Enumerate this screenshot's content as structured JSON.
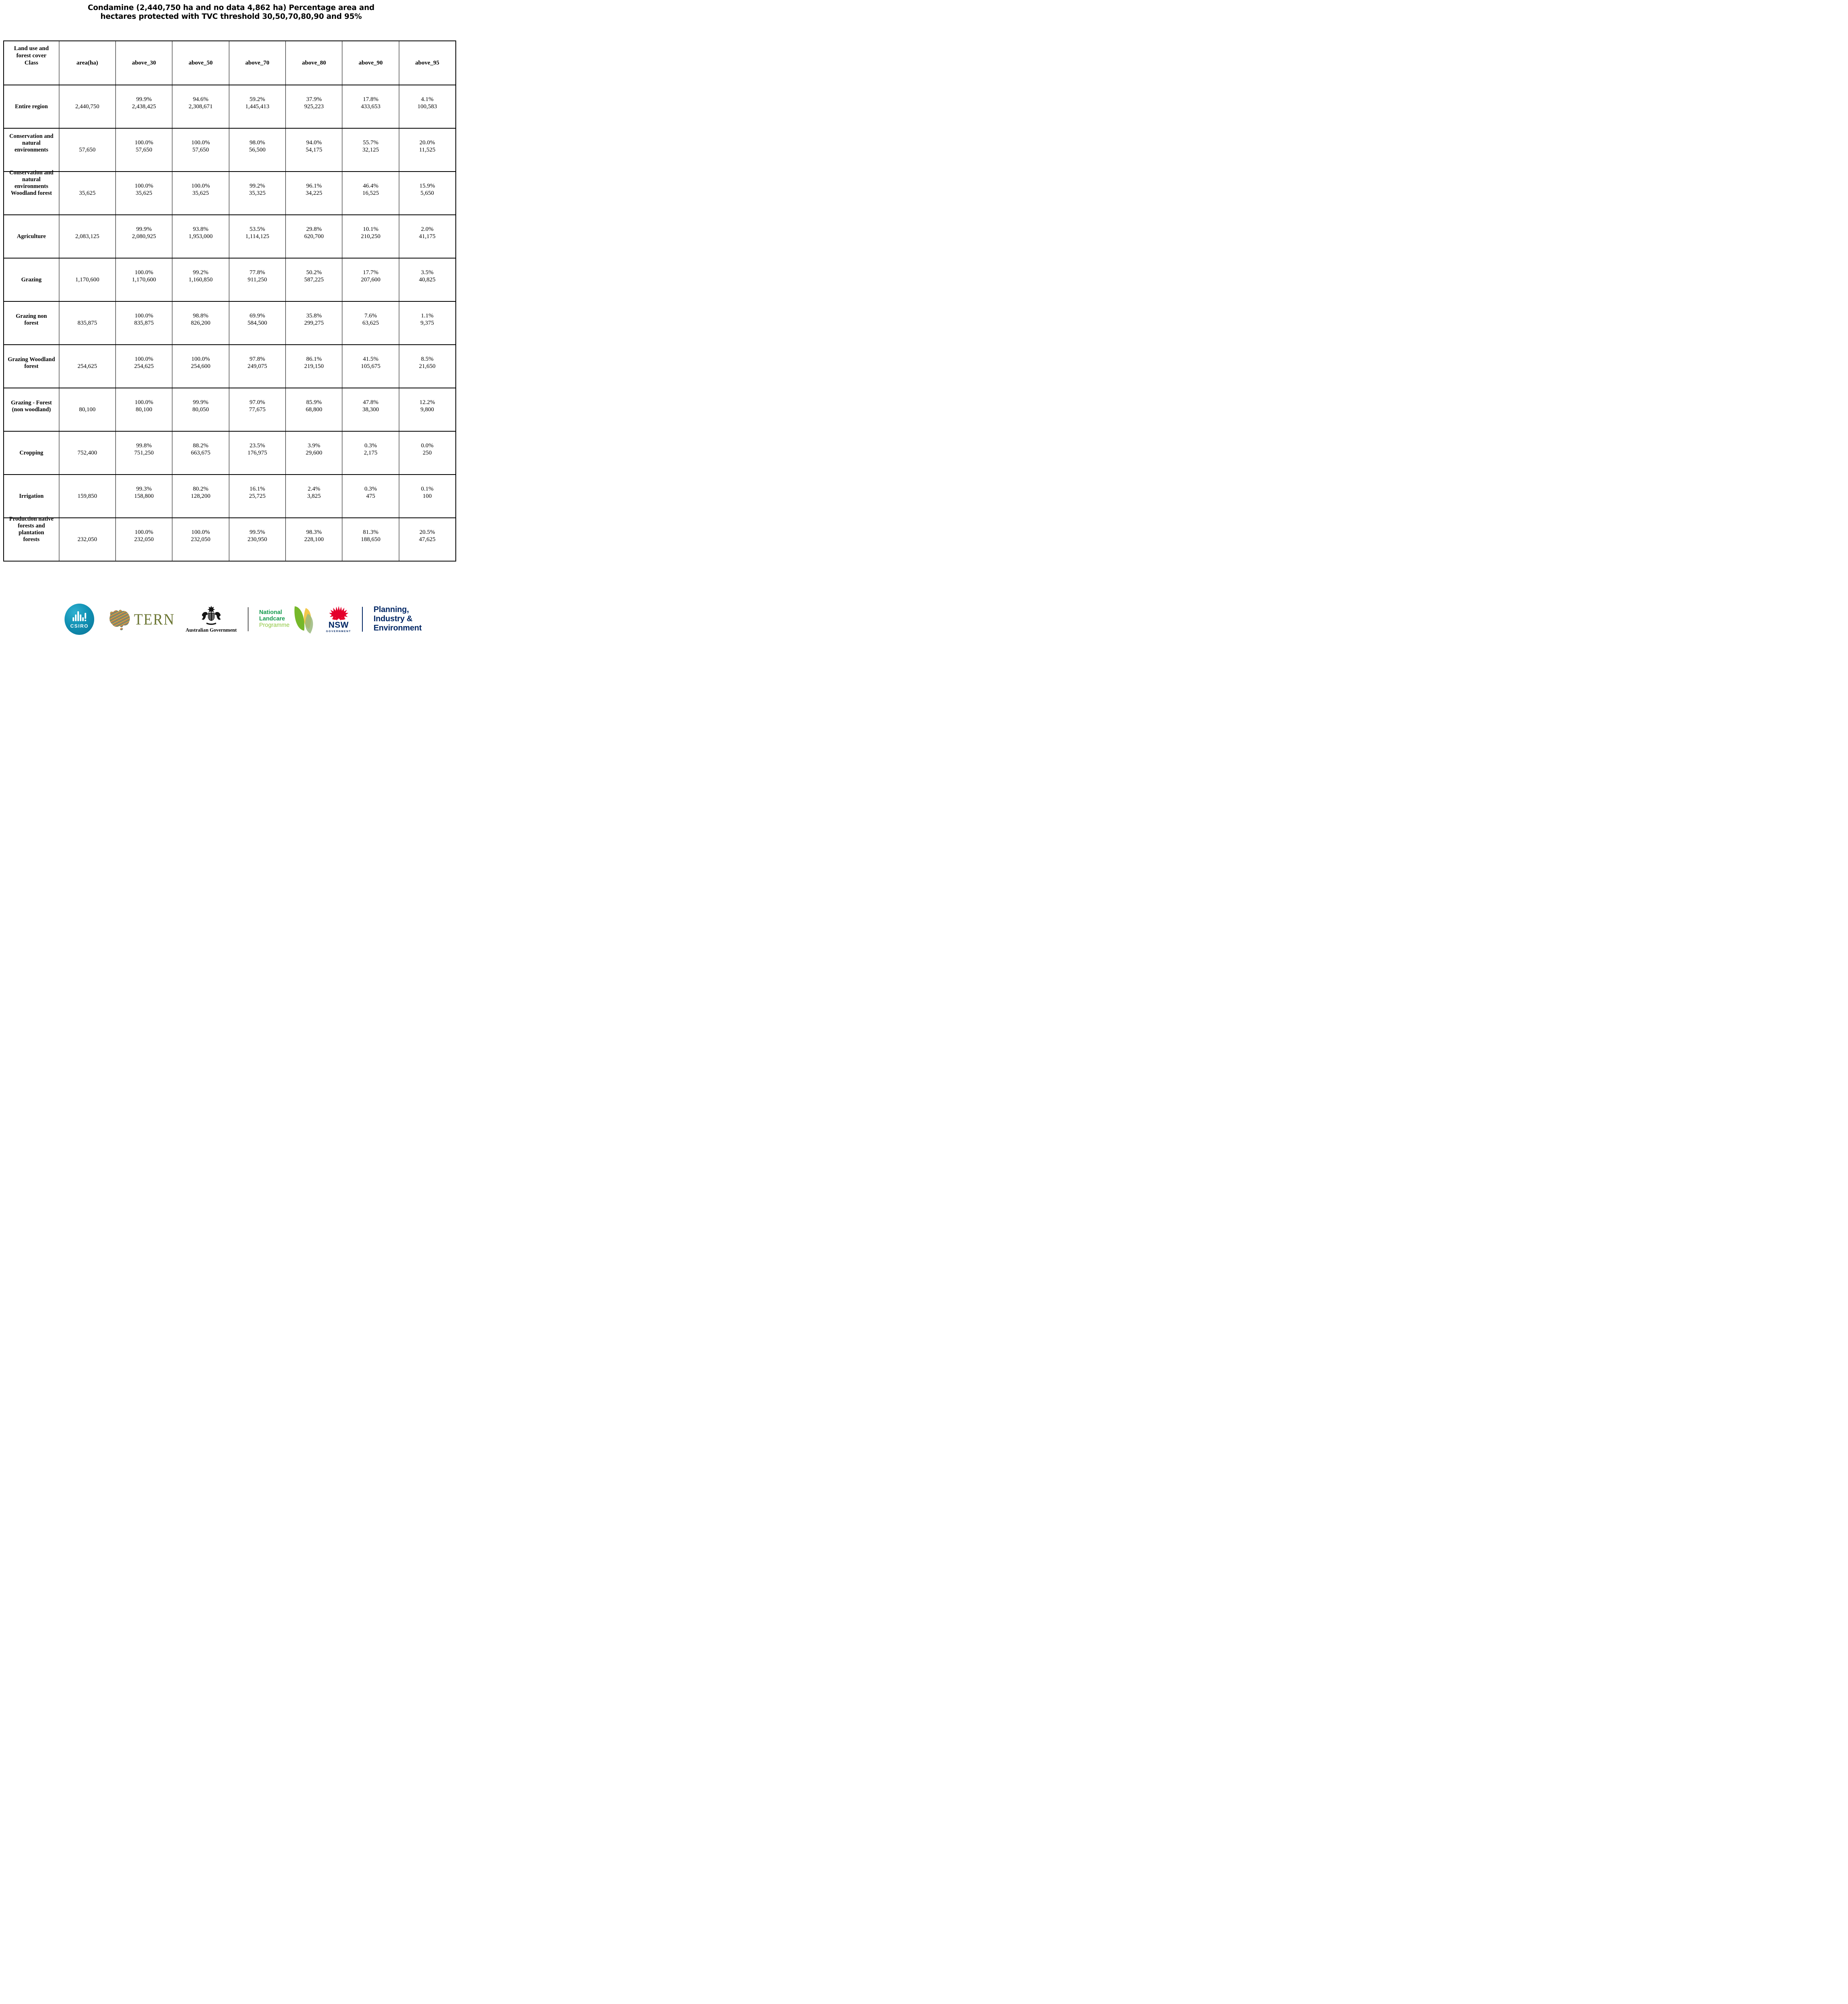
{
  "title": {
    "line1": "Condamine (2,440,750 ha and no data 4,862 ha) Percentage area and",
    "line2": "hectares protected with TVC threshold 30,50,70,80,90 and 95%"
  },
  "table": {
    "header": [
      {
        "lines": [
          "Land use and",
          "forest cover",
          "Class"
        ]
      },
      {
        "lines": [
          "area(ha)"
        ]
      },
      {
        "lines": [
          "above_30"
        ]
      },
      {
        "lines": [
          "above_50"
        ]
      },
      {
        "lines": [
          "above_70"
        ]
      },
      {
        "lines": [
          "above_80"
        ]
      },
      {
        "lines": [
          "above_90"
        ]
      },
      {
        "lines": [
          "above_95"
        ]
      }
    ],
    "rows": [
      {
        "class_lines": [
          "Entire region"
        ],
        "area": "2,440,750",
        "cells": [
          {
            "pct": "99.9%",
            "ha": "2,438,425"
          },
          {
            "pct": "94.6%",
            "ha": "2,308,671"
          },
          {
            "pct": "59.2%",
            "ha": "1,445,413"
          },
          {
            "pct": "37.9%",
            "ha": "925,223"
          },
          {
            "pct": "17.8%",
            "ha": "433,653"
          },
          {
            "pct": "4.1%",
            "ha": "100,583"
          }
        ]
      },
      {
        "class_lines": [
          "Conservation and",
          "natural",
          "environments"
        ],
        "area": "57,650",
        "cells": [
          {
            "pct": "100.0%",
            "ha": "57,650"
          },
          {
            "pct": "100.0%",
            "ha": "57,650"
          },
          {
            "pct": "98.0%",
            "ha": "56,500"
          },
          {
            "pct": "94.0%",
            "ha": "54,175"
          },
          {
            "pct": "55.7%",
            "ha": "32,125"
          },
          {
            "pct": "20.0%",
            "ha": "11,525"
          }
        ]
      },
      {
        "class_lines": [
          "Conservation and",
          "natural",
          "environments",
          "Woodland forest"
        ],
        "area": "35,625",
        "cells": [
          {
            "pct": "100.0%",
            "ha": "35,625"
          },
          {
            "pct": "100.0%",
            "ha": "35,625"
          },
          {
            "pct": "99.2%",
            "ha": "35,325"
          },
          {
            "pct": "96.1%",
            "ha": "34,225"
          },
          {
            "pct": "46.4%",
            "ha": "16,525"
          },
          {
            "pct": "15.9%",
            "ha": "5,650"
          }
        ]
      },
      {
        "class_lines": [
          "Agriculture"
        ],
        "area": "2,083,125",
        "cells": [
          {
            "pct": "99.9%",
            "ha": "2,080,925"
          },
          {
            "pct": "93.8%",
            "ha": "1,953,000"
          },
          {
            "pct": "53.5%",
            "ha": "1,114,125"
          },
          {
            "pct": "29.8%",
            "ha": "620,700"
          },
          {
            "pct": "10.1%",
            "ha": "210,250"
          },
          {
            "pct": "2.0%",
            "ha": "41,175"
          }
        ]
      },
      {
        "class_lines": [
          "Grazing"
        ],
        "area": "1,170,600",
        "cells": [
          {
            "pct": "100.0%",
            "ha": "1,170,600"
          },
          {
            "pct": "99.2%",
            "ha": "1,160,850"
          },
          {
            "pct": "77.8%",
            "ha": "911,250"
          },
          {
            "pct": "50.2%",
            "ha": "587,225"
          },
          {
            "pct": "17.7%",
            "ha": "207,600"
          },
          {
            "pct": "3.5%",
            "ha": "40,825"
          }
        ]
      },
      {
        "class_lines": [
          "Grazing non",
          "forest"
        ],
        "area": "835,875",
        "cells": [
          {
            "pct": "100.0%",
            "ha": "835,875"
          },
          {
            "pct": "98.8%",
            "ha": "826,200"
          },
          {
            "pct": "69.9%",
            "ha": "584,500"
          },
          {
            "pct": "35.8%",
            "ha": "299,275"
          },
          {
            "pct": "7.6%",
            "ha": "63,625"
          },
          {
            "pct": "1.1%",
            "ha": "9,375"
          }
        ]
      },
      {
        "class_lines": [
          "Grazing Woodland",
          "forest"
        ],
        "area": "254,625",
        "cells": [
          {
            "pct": "100.0%",
            "ha": "254,625"
          },
          {
            "pct": "100.0%",
            "ha": "254,600"
          },
          {
            "pct": "97.8%",
            "ha": "249,075"
          },
          {
            "pct": "86.1%",
            "ha": "219,150"
          },
          {
            "pct": "41.5%",
            "ha": "105,675"
          },
          {
            "pct": "8.5%",
            "ha": "21,650"
          }
        ]
      },
      {
        "class_lines": [
          "Grazing - Forest",
          "(non woodland)"
        ],
        "area": "80,100",
        "cells": [
          {
            "pct": "100.0%",
            "ha": "80,100"
          },
          {
            "pct": "99.9%",
            "ha": "80,050"
          },
          {
            "pct": "97.0%",
            "ha": "77,675"
          },
          {
            "pct": "85.9%",
            "ha": "68,800"
          },
          {
            "pct": "47.8%",
            "ha": "38,300"
          },
          {
            "pct": "12.2%",
            "ha": "9,800"
          }
        ]
      },
      {
        "class_lines": [
          "Cropping"
        ],
        "area": "752,400",
        "cells": [
          {
            "pct": "99.8%",
            "ha": "751,250"
          },
          {
            "pct": "88.2%",
            "ha": "663,675"
          },
          {
            "pct": "23.5%",
            "ha": "176,975"
          },
          {
            "pct": "3.9%",
            "ha": "29,600"
          },
          {
            "pct": "0.3%",
            "ha": "2,175"
          },
          {
            "pct": "0.0%",
            "ha": "250"
          }
        ]
      },
      {
        "class_lines": [
          "Irrigation"
        ],
        "area": "159,850",
        "cells": [
          {
            "pct": "99.3%",
            "ha": "158,800"
          },
          {
            "pct": "80.2%",
            "ha": "128,200"
          },
          {
            "pct": "16.1%",
            "ha": "25,725"
          },
          {
            "pct": "2.4%",
            "ha": "3,825"
          },
          {
            "pct": "0.3%",
            "ha": "475"
          },
          {
            "pct": "0.1%",
            "ha": "100"
          }
        ]
      },
      {
        "class_lines": [
          "Production native",
          "forests and",
          "plantation",
          "forests"
        ],
        "area": "232,050",
        "cells": [
          {
            "pct": "100.0%",
            "ha": "232,050"
          },
          {
            "pct": "100.0%",
            "ha": "232,050"
          },
          {
            "pct": "99.5%",
            "ha": "230,950"
          },
          {
            "pct": "98.3%",
            "ha": "228,100"
          },
          {
            "pct": "81.3%",
            "ha": "188,650"
          },
          {
            "pct": "20.5%",
            "ha": "47,625"
          }
        ]
      }
    ]
  },
  "footer": {
    "csiro": {
      "label": "CSIRO"
    },
    "tern": {
      "label": "TERN"
    },
    "aus_gov": {
      "label": "Australian Government"
    },
    "landcare": {
      "line1": "National",
      "line2": "Landcare",
      "line3": "Programme"
    },
    "nsw": {
      "label": "NSW",
      "sub": "GOVERNMENT"
    },
    "pie": {
      "line1": "Planning,",
      "line2": "Industry &",
      "line3": "Environment"
    }
  },
  "colors": {
    "csiro_teal": "#1191b4",
    "tern_olive": "#6b7533",
    "landcare_green": "#169a4e",
    "landcare_light_green": "#8dc63f",
    "nsw_red": "#e4002b",
    "navy": "#002664",
    "border_black": "#000000"
  }
}
